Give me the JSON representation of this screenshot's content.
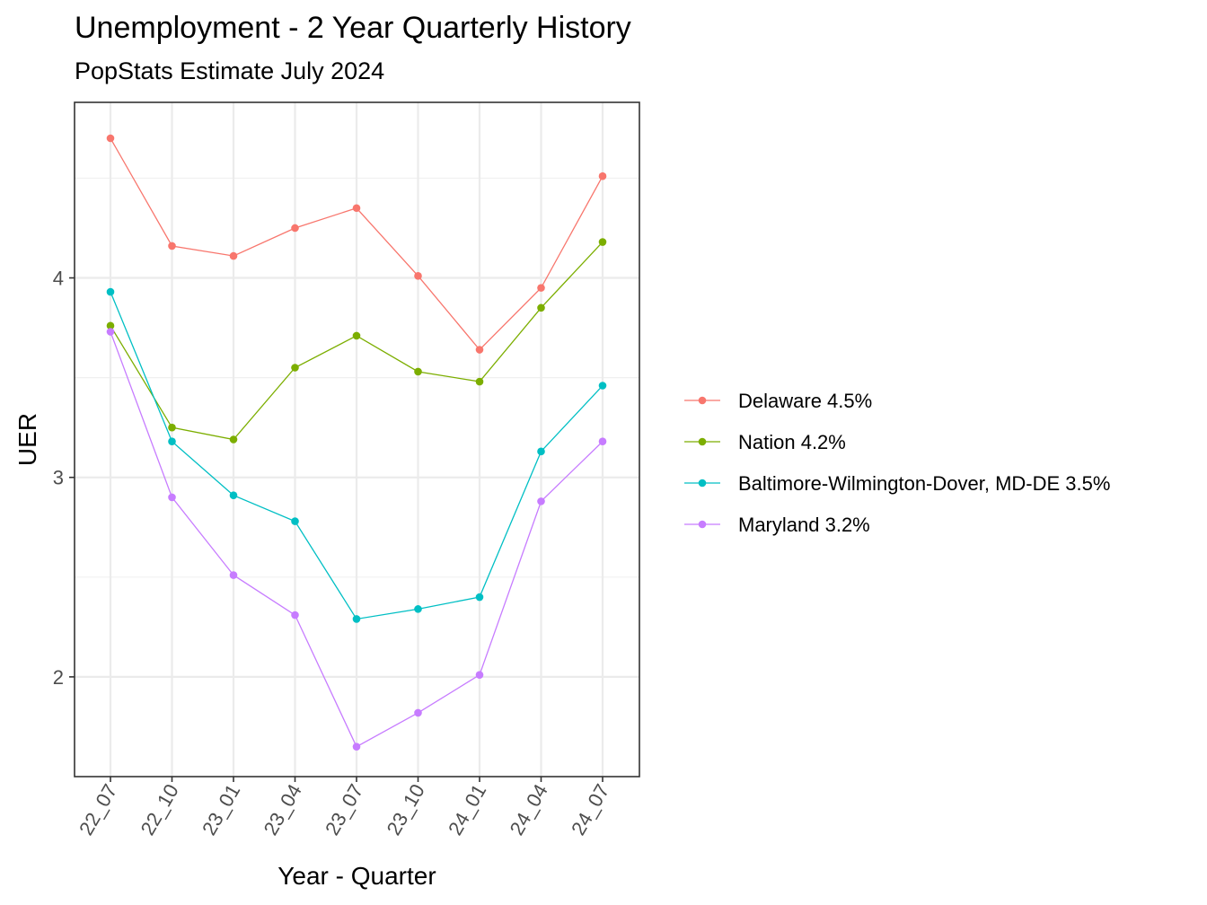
{
  "chart_data": {
    "type": "line",
    "title": "Unemployment - 2 Year Quarterly History",
    "subtitle": "PopStats Estimate July 2024",
    "xlabel": "Year - Quarter",
    "ylabel": "UER",
    "categories": [
      "22_07",
      "22_10",
      "23_01",
      "23_04",
      "23_07",
      "23_10",
      "24_01",
      "24_04",
      "24_07"
    ],
    "ylim": [
      1.5,
      4.88
    ],
    "yticks": [
      2,
      3,
      4
    ],
    "grid": true,
    "legend_position": "right",
    "series": [
      {
        "name": "Delaware 4.5%",
        "color": "#F8766D",
        "values": [
          4.7,
          4.16,
          4.11,
          4.25,
          4.35,
          4.01,
          3.64,
          3.95,
          4.51
        ]
      },
      {
        "name": "Nation 4.2%",
        "color": "#7CAE00",
        "values": [
          3.76,
          3.25,
          3.19,
          3.55,
          3.71,
          3.53,
          3.48,
          3.85,
          4.18
        ]
      },
      {
        "name": "Baltimore-Wilmington-Dover, MD-DE 3.5%",
        "color": "#00BFC4",
        "values": [
          3.93,
          3.18,
          2.91,
          2.78,
          2.29,
          2.34,
          2.4,
          3.13,
          3.46
        ]
      },
      {
        "name": "Maryland 3.2%",
        "color": "#C77CFF",
        "values": [
          3.73,
          2.9,
          2.51,
          2.31,
          1.65,
          1.82,
          2.01,
          2.88,
          3.18
        ]
      }
    ]
  }
}
